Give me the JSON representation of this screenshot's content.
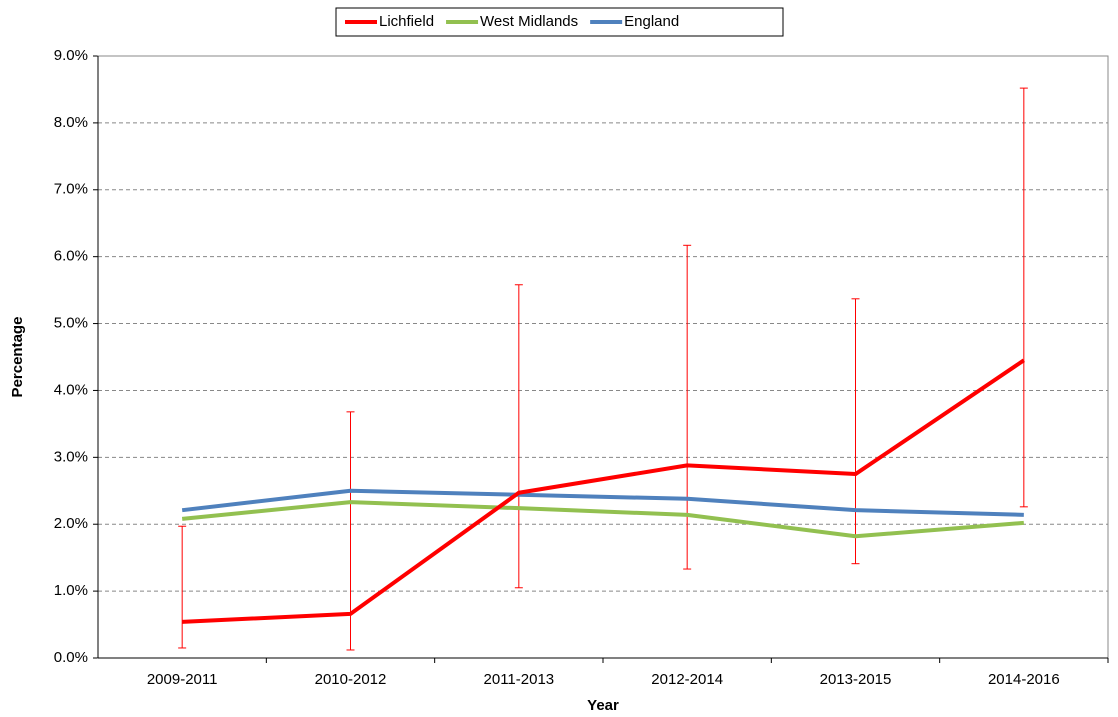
{
  "chart_data": {
    "type": "line",
    "x_label": "Year",
    "y_label": "Percentage",
    "categories": [
      "2009-2011",
      "2010-2012",
      "2011-2013",
      "2012-2014",
      "2013-2015",
      "2014-2016"
    ],
    "series": [
      {
        "name": "Lichfield",
        "color": "#ff0000",
        "values": [
          0.54,
          0.66,
          2.47,
          2.88,
          2.75,
          4.45
        ],
        "lower": [
          0.15,
          0.12,
          1.05,
          1.33,
          1.41,
          2.26
        ],
        "upper": [
          1.97,
          3.68,
          5.58,
          6.17,
          5.37,
          8.52
        ]
      },
      {
        "name": "West Midlands",
        "color": "#92c050",
        "values": [
          2.08,
          2.33,
          2.24,
          2.14,
          1.82,
          2.02
        ]
      },
      {
        "name": "England",
        "color": "#4f81bd",
        "values": [
          2.21,
          2.5,
          2.44,
          2.38,
          2.21,
          2.14
        ]
      }
    ],
    "ylim": [
      0,
      9
    ],
    "yticks": [
      {
        "value": 0,
        "label": "0.0%"
      },
      {
        "value": 1,
        "label": "1.0%"
      },
      {
        "value": 2,
        "label": "2.0%"
      },
      {
        "value": 3,
        "label": "3.0%"
      },
      {
        "value": 4,
        "label": "4.0%"
      },
      {
        "value": 5,
        "label": "5.0%"
      },
      {
        "value": 6,
        "label": "6.0%"
      },
      {
        "value": 7,
        "label": "7.0%"
      },
      {
        "value": 8,
        "label": "8.0%"
      },
      {
        "value": 9,
        "label": "9.0%"
      }
    ],
    "grid": true,
    "legend": "top"
  }
}
